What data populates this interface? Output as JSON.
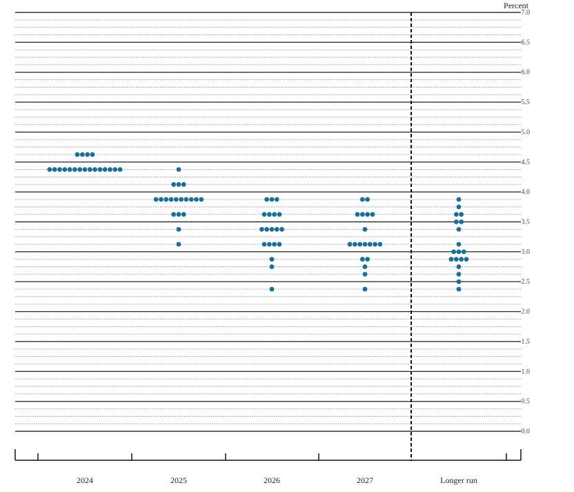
{
  "chart_data": {
    "type": "scatter",
    "ylabel": "Percent",
    "ylim": [
      0.0,
      7.0
    ],
    "yticks": [
      "7.0",
      "6.5",
      "6.0",
      "5.5",
      "5.0",
      "4.5",
      "4.0",
      "3.5",
      "3.0",
      "2.5",
      "2.0",
      "1.5",
      "1.0",
      "0.5",
      "0.0"
    ],
    "categories": [
      "2024",
      "2025",
      "2026",
      "2027",
      "Longer run"
    ],
    "dot_color": "#1a6f9a",
    "dots": [
      {
        "category": "2024",
        "points": [
          {
            "value": 4.625,
            "count": 4
          },
          {
            "value": 4.375,
            "count": 15
          }
        ]
      },
      {
        "category": "2025",
        "points": [
          {
            "value": 4.375,
            "count": 1
          },
          {
            "value": 4.125,
            "count": 3
          },
          {
            "value": 3.875,
            "count": 10
          },
          {
            "value": 3.625,
            "count": 3
          },
          {
            "value": 3.375,
            "count": 1
          },
          {
            "value": 3.125,
            "count": 1
          }
        ]
      },
      {
        "category": "2026",
        "points": [
          {
            "value": 3.875,
            "count": 3
          },
          {
            "value": 3.625,
            "count": 4
          },
          {
            "value": 3.375,
            "count": 5
          },
          {
            "value": 3.125,
            "count": 4
          },
          {
            "value": 2.875,
            "count": 1
          },
          {
            "value": 2.75,
            "count": 1
          },
          {
            "value": 2.375,
            "count": 1
          }
        ]
      },
      {
        "category": "2027",
        "points": [
          {
            "value": 3.875,
            "count": 2
          },
          {
            "value": 3.625,
            "count": 4
          },
          {
            "value": 3.375,
            "count": 1
          },
          {
            "value": 3.125,
            "count": 7
          },
          {
            "value": 2.875,
            "count": 2
          },
          {
            "value": 2.75,
            "count": 1
          },
          {
            "value": 2.625,
            "count": 1
          },
          {
            "value": 2.375,
            "count": 1
          }
        ]
      },
      {
        "category": "Longer run",
        "points": [
          {
            "value": 3.875,
            "count": 1
          },
          {
            "value": 3.75,
            "count": 1
          },
          {
            "value": 3.625,
            "count": 2
          },
          {
            "value": 3.5,
            "count": 2
          },
          {
            "value": 3.375,
            "count": 1
          },
          {
            "value": 3.125,
            "count": 1
          },
          {
            "value": 3.0,
            "count": 3
          },
          {
            "value": 2.875,
            "count": 4
          },
          {
            "value": 2.75,
            "count": 1
          },
          {
            "value": 2.625,
            "count": 1
          },
          {
            "value": 2.5,
            "count": 1
          },
          {
            "value": 2.375,
            "count": 1
          }
        ]
      }
    ]
  }
}
